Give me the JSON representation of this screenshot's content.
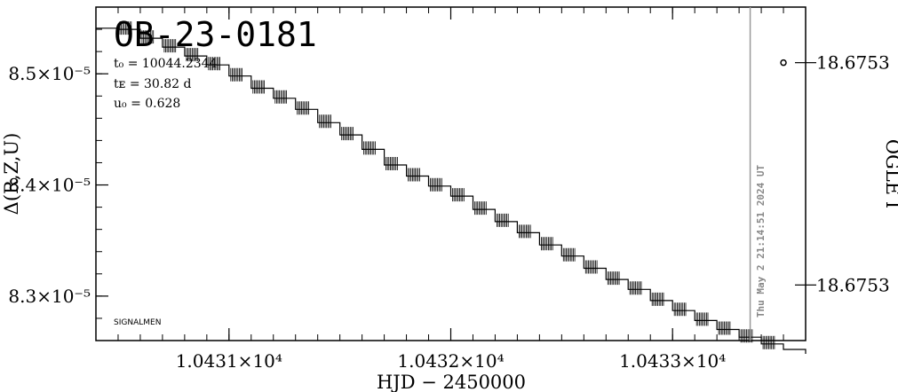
{
  "chart_data": {
    "type": "line",
    "title": "OB-23-0181",
    "params": {
      "t0": "t₀ = 10044.2344",
      "tE": "tᴇ = 30.82 d",
      "u0": "u₀ = 0.628"
    },
    "xlabel": "HJD − 2450000",
    "ylabel_left": "Δ(R,Z,U)",
    "ylabel_right": "OGLE I",
    "x_ticks": [
      {
        "value": 10431,
        "label": "1.0431×10⁴"
      },
      {
        "value": 10432,
        "label": "1.0432×10⁴"
      },
      {
        "value": 10433,
        "label": "1.0433×10⁴"
      }
    ],
    "y_ticks_left": [
      {
        "value": 8.5e-05,
        "label": "8.5×10⁻⁵"
      },
      {
        "value": 8.4e-05,
        "label": "8.4×10⁻⁵"
      },
      {
        "value": 8.3e-05,
        "label": "8.3×10⁻⁵"
      }
    ],
    "y_ticks_right": [
      {
        "value": 18.67531,
        "label": "18.6753"
      },
      {
        "value": 18.67539,
        "label": "18.6753"
      }
    ],
    "xlim": [
      10430.4,
      10433.6
    ],
    "ylim": [
      8.26e-05,
      8.56e-05
    ],
    "now_marker_x": 10433.35,
    "now_label": "Thu May  2 21:14:51 2024 UT",
    "footer_label": "SIGNALMEN",
    "series": [
      {
        "x": [
          10430.4,
          10430.5,
          10430.6,
          10430.7,
          10430.8,
          10430.9,
          10431.0,
          10431.1,
          10431.2,
          10431.3,
          10431.4,
          10431.5,
          10431.6,
          10431.7,
          10431.8,
          10431.9,
          10432.0,
          10432.1,
          10432.2,
          10432.3,
          10432.4,
          10432.5,
          10432.6,
          10432.7,
          10432.8,
          10432.9,
          10433.0,
          10433.1,
          10433.2,
          10433.3,
          10433.4,
          10433.5,
          10433.6
        ],
        "y": [
          8.541e-05,
          8.54e-05,
          8.532e-05,
          8.524e-05,
          8.516e-05,
          8.508e-05,
          8.498e-05,
          8.487e-05,
          8.478e-05,
          8.468e-05,
          8.456e-05,
          8.445e-05,
          8.432e-05,
          8.418e-05,
          8.408e-05,
          8.399e-05,
          8.39e-05,
          8.378e-05,
          8.367e-05,
          8.357e-05,
          8.346e-05,
          8.336e-05,
          8.325e-05,
          8.315e-05,
          8.306e-05,
          8.296e-05,
          8.287e-05,
          8.278e-05,
          8.27e-05,
          8.263e-05,
          8.257e-05,
          8.252e-05,
          8.248e-05
        ]
      }
    ],
    "ogle_points": [
      {
        "x": 10433.5,
        "mag": 18.67531
      }
    ]
  }
}
